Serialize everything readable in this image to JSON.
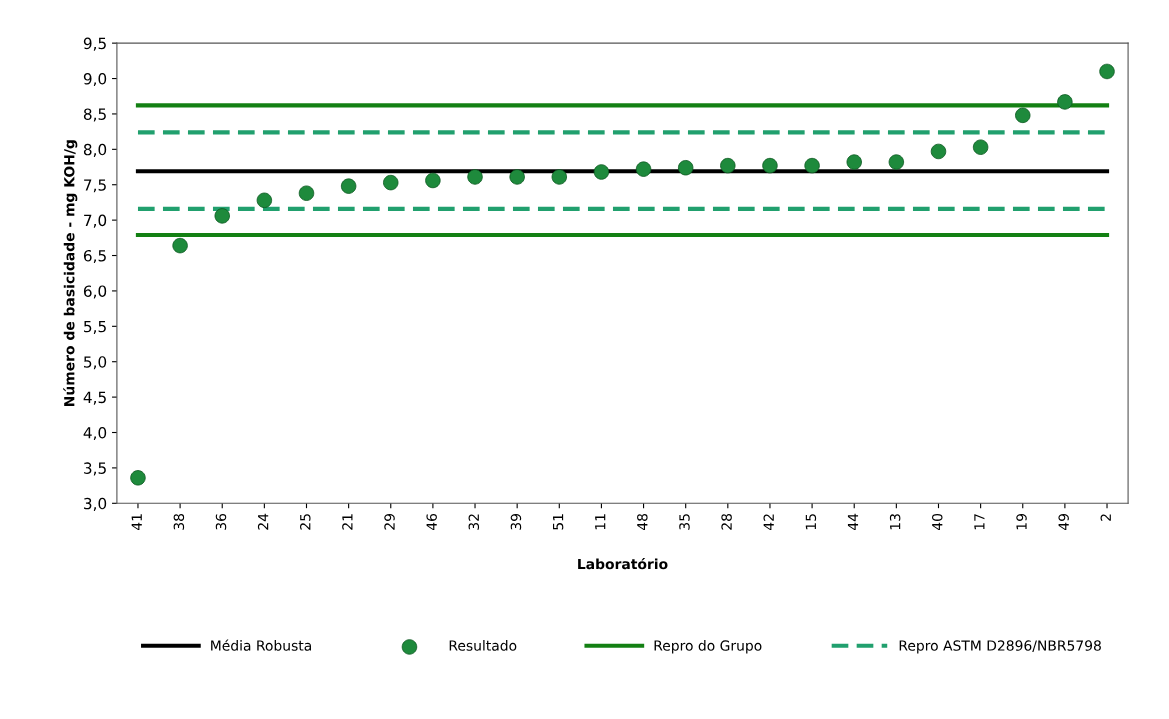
{
  "chart_data": {
    "type": "scatter",
    "xlabel": "Laboratório",
    "ylabel": "Número de basicidade - mg KOH/g",
    "categories": [
      "41",
      "38",
      "36",
      "24",
      "25",
      "21",
      "29",
      "46",
      "32",
      "39",
      "51",
      "11",
      "48",
      "35",
      "28",
      "42",
      "15",
      "44",
      "13",
      "40",
      "17",
      "19",
      "49",
      "2"
    ],
    "ylim": [
      3.0,
      9.5
    ],
    "yticks": [
      {
        "value": 3.0,
        "label": "3,0"
      },
      {
        "value": 3.5,
        "label": "3,5"
      },
      {
        "value": 4.0,
        "label": "4,0"
      },
      {
        "value": 4.5,
        "label": "4,5"
      },
      {
        "value": 5.0,
        "label": "5,0"
      },
      {
        "value": 5.5,
        "label": "5,5"
      },
      {
        "value": 6.0,
        "label": "6,0"
      },
      {
        "value": 6.5,
        "label": "6,5"
      },
      {
        "value": 7.0,
        "label": "7,0"
      },
      {
        "value": 7.5,
        "label": "7,5"
      },
      {
        "value": 8.0,
        "label": "8,0"
      },
      {
        "value": 8.5,
        "label": "8,5"
      },
      {
        "value": 9.0,
        "label": "9,0"
      },
      {
        "value": 9.5,
        "label": "9,5"
      }
    ],
    "grid": false,
    "legend": "bottom",
    "series": [
      {
        "name": "Média Robusta",
        "type": "line",
        "line_style": "solid",
        "marker": "none",
        "color": "#000000",
        "values": [
          7.69,
          7.69,
          7.69,
          7.69,
          7.69,
          7.69,
          7.69,
          7.69,
          7.69,
          7.69,
          7.69,
          7.69,
          7.69,
          7.69,
          7.69,
          7.69,
          7.69,
          7.69,
          7.69,
          7.69,
          7.69,
          7.69,
          7.69,
          7.69
        ]
      },
      {
        "name": "Resultado",
        "marker": "circle",
        "color": "#1e8a3c",
        "values": [
          3.36,
          6.64,
          7.06,
          7.28,
          7.38,
          7.48,
          7.53,
          7.56,
          7.61,
          7.61,
          7.61,
          7.68,
          7.72,
          7.74,
          7.77,
          7.77,
          7.77,
          7.82,
          7.82,
          7.97,
          8.03,
          8.48,
          8.67,
          9.1
        ]
      },
      {
        "name": "Repro do Grupo",
        "type": "line",
        "line_style": "solid",
        "marker": "none",
        "color": "#138013",
        "values": [
          8.62,
          8.62,
          8.62,
          8.62,
          8.62,
          8.62,
          8.62,
          8.62,
          8.62,
          8.62,
          8.62,
          8.62,
          8.62,
          8.62,
          8.62,
          8.62,
          8.62,
          8.62,
          8.62,
          8.62,
          8.62,
          8.62,
          8.62,
          8.62
        ]
      },
      {
        "type": "line",
        "line_style": "solid",
        "marker": "none",
        "color": "#138013",
        "values": [
          6.79,
          6.79,
          6.79,
          6.79,
          6.79,
          6.79,
          6.79,
          6.79,
          6.79,
          6.79,
          6.79,
          6.79,
          6.79,
          6.79,
          6.79,
          6.79,
          6.79,
          6.79,
          6.79,
          6.79,
          6.79,
          6.79,
          6.79,
          6.79
        ]
      },
      {
        "name": "Repro ASTM D2896/NBR5798",
        "type": "line",
        "line_style": "dashed",
        "marker": "none",
        "color": "#21a06e",
        "values": [
          8.24,
          8.24,
          8.24,
          8.24,
          8.24,
          8.24,
          8.24,
          8.24,
          8.24,
          8.24,
          8.24,
          8.24,
          8.24,
          8.24,
          8.24,
          8.24,
          8.24,
          8.24,
          8.24,
          8.24,
          8.24,
          8.24,
          8.24,
          8.24
        ]
      },
      {
        "type": "line",
        "line_style": "dashed",
        "marker": "none",
        "color": "#21a06e",
        "values": [
          7.16,
          7.16,
          7.16,
          7.16,
          7.16,
          7.16,
          7.16,
          7.16,
          7.16,
          7.16,
          7.16,
          7.16,
          7.16,
          7.16,
          7.16,
          7.16,
          7.16,
          7.16,
          7.16,
          7.16,
          7.16,
          7.16,
          7.16,
          7.16
        ]
      }
    ]
  }
}
